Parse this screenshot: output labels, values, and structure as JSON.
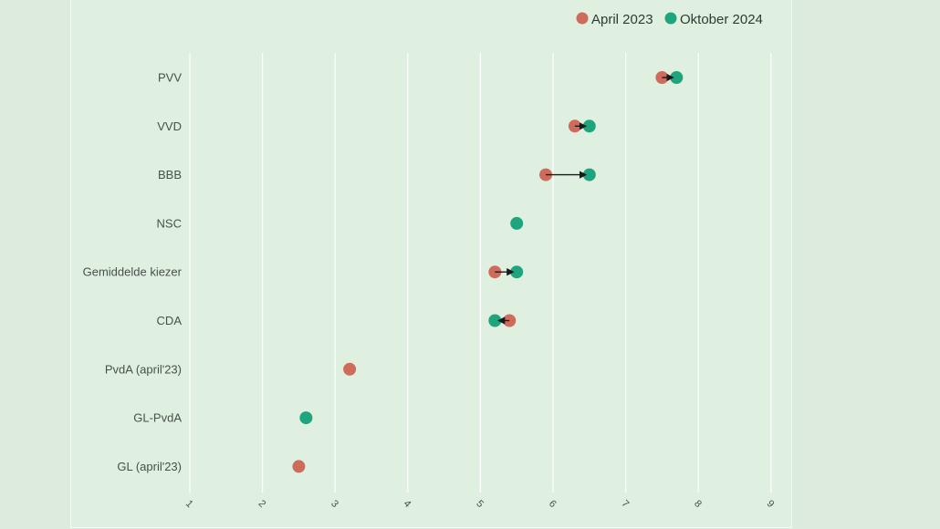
{
  "chart_data": {
    "type": "dumbbell",
    "title": "",
    "xlabel": "",
    "ylabel": "",
    "xlim": [
      1,
      9
    ],
    "xticks": [
      1,
      2,
      3,
      4,
      5,
      6,
      7,
      8,
      9
    ],
    "grid": "vertical",
    "legend": "top-right",
    "colors": {
      "april": "#cf6b5a",
      "oktober": "#1fa57e"
    },
    "series": [
      {
        "name": "April 2023",
        "key": "april"
      },
      {
        "name": "Oktober 2024",
        "key": "oktober"
      }
    ],
    "categories": [
      "PVV",
      "VVD",
      "BBB",
      "NSC",
      "Gemiddelde kiezer",
      "CDA",
      "PvdA (april'23)",
      "GL-PvdA",
      "GL (april'23)"
    ],
    "april": [
      7.5,
      6.3,
      5.9,
      null,
      5.2,
      5.4,
      3.2,
      null,
      2.5
    ],
    "oktober": [
      7.7,
      6.5,
      6.5,
      5.5,
      5.5,
      5.2,
      null,
      2.6,
      null
    ]
  }
}
